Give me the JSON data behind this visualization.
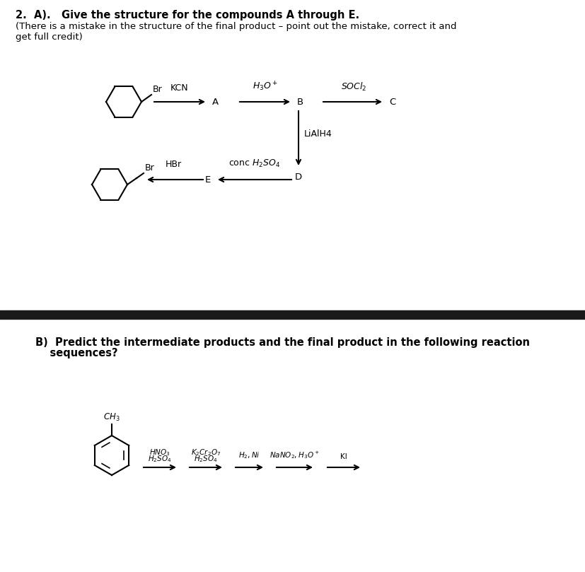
{
  "title_line1": "2.  A).   Give the structure for the compounds A through E.",
  "subtitle_line1": "(There is a mistake in the structure of the final product – point out the mistake, correct it and",
  "subtitle_line2": "get full credit)",
  "section_b_title1": "B)  Predict the intermediate products and the final product in the following reaction",
  "section_b_title2": "    sequences?",
  "divider_color": "#1a1a1a",
  "text_color": "#000000",
  "arrow_color": "#000000"
}
